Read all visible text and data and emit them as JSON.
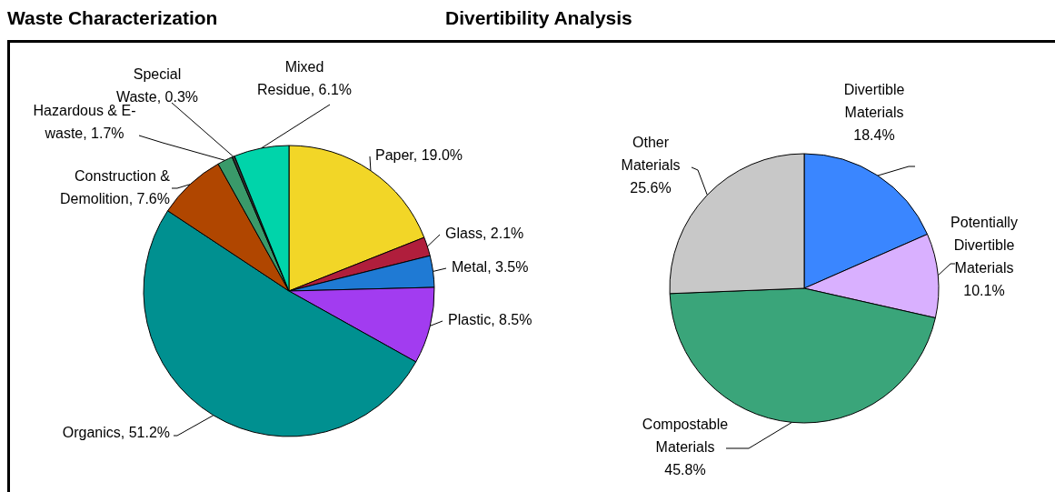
{
  "chart_data": [
    {
      "type": "pie",
      "title": "Waste Characterization",
      "categories": [
        "Paper",
        "Glass",
        "Metal",
        "Plastic",
        "Organics",
        "Construction & Demolition",
        "Hazardous & E-waste",
        "Special Waste",
        "Mixed Residue"
      ],
      "values": [
        19.0,
        2.1,
        3.5,
        8.5,
        51.2,
        7.6,
        1.7,
        0.3,
        6.1
      ],
      "value_labels": [
        "19.0%",
        "2.1%",
        "3.5%",
        "8.5%",
        "51.2%",
        "7.6%",
        "1.7%",
        "0.3%",
        "6.1%"
      ],
      "colors": [
        "#f2d627",
        "#b01e3c",
        "#1f7ad4",
        "#a23cf0",
        "#009090",
        "#b04600",
        "#3a9a6a",
        "#333333",
        "#00d4aa"
      ],
      "legend": false
    },
    {
      "type": "pie",
      "title": "Divertibility Analysis",
      "categories": [
        "Divertible Materials",
        "Potentially Divertible Materials",
        "Compostable Materials",
        "Other Materials"
      ],
      "values": [
        18.4,
        10.1,
        45.8,
        25.6
      ],
      "value_labels": [
        "18.4%",
        "10.1%",
        "45.8%",
        "25.6%"
      ],
      "colors": [
        "#3a86ff",
        "#d9b0ff",
        "#3aa57a",
        "#c8c8c8"
      ],
      "legend": false
    }
  ]
}
